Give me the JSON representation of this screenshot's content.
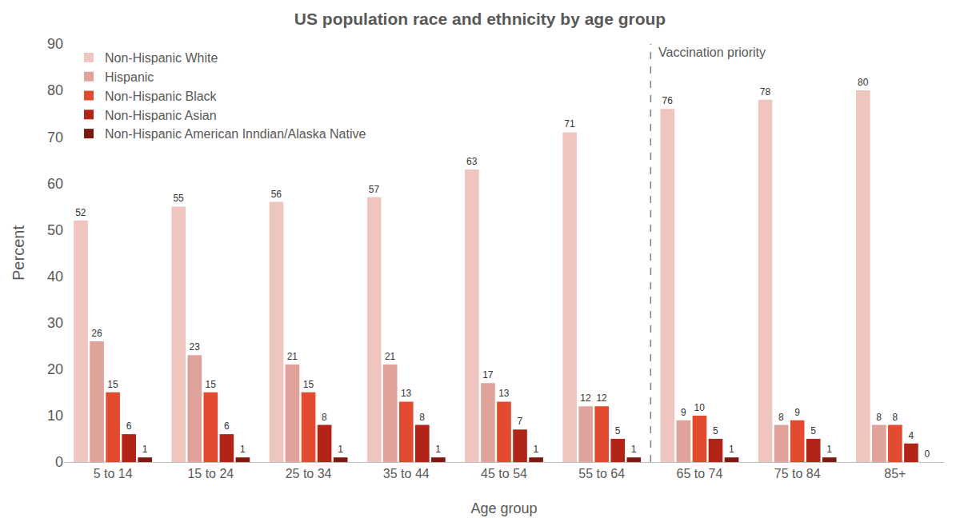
{
  "chart_data": {
    "type": "bar",
    "title": "US population race and ethnicity by age group",
    "x_label": "Age group",
    "y_label": "Percent",
    "categories": [
      "5 to 14",
      "15 to 24",
      "25 to 34",
      "35 to 44",
      "45 to 54",
      "55 to 64",
      "65 to 74",
      "75 to 84",
      "85+"
    ],
    "series": [
      {
        "name": "Non-Hispanic White",
        "color": "#eec5bf",
        "values": [
          52,
          55,
          56,
          57,
          63,
          71,
          76,
          78,
          80
        ]
      },
      {
        "name": "Hispanic",
        "color": "#dfa39b",
        "values": [
          26,
          23,
          21,
          21,
          17,
          12,
          9,
          8,
          8
        ]
      },
      {
        "name": "Non-Hispanic Black",
        "color": "#e34b30",
        "values": [
          15,
          15,
          15,
          13,
          13,
          12,
          10,
          9,
          8
        ]
      },
      {
        "name": "Non-Hispanic Asian",
        "color": "#b32418",
        "values": [
          6,
          6,
          8,
          8,
          7,
          5,
          5,
          5,
          4
        ]
      },
      {
        "name": "Non-Hispanic American Inndian/Alaska Native",
        "color": "#7b1a10",
        "values": [
          1,
          1,
          1,
          1,
          1,
          1,
          1,
          1,
          0
        ]
      }
    ],
    "ylim": [
      0,
      90
    ],
    "yticks": [
      0,
      10,
      20,
      30,
      40,
      50,
      60,
      70,
      80,
      90
    ],
    "grid": false,
    "legend": "top left",
    "data_labels": true,
    "annotations": [
      {
        "text": "Vaccination priority",
        "category": "65 to 74"
      }
    ]
  }
}
